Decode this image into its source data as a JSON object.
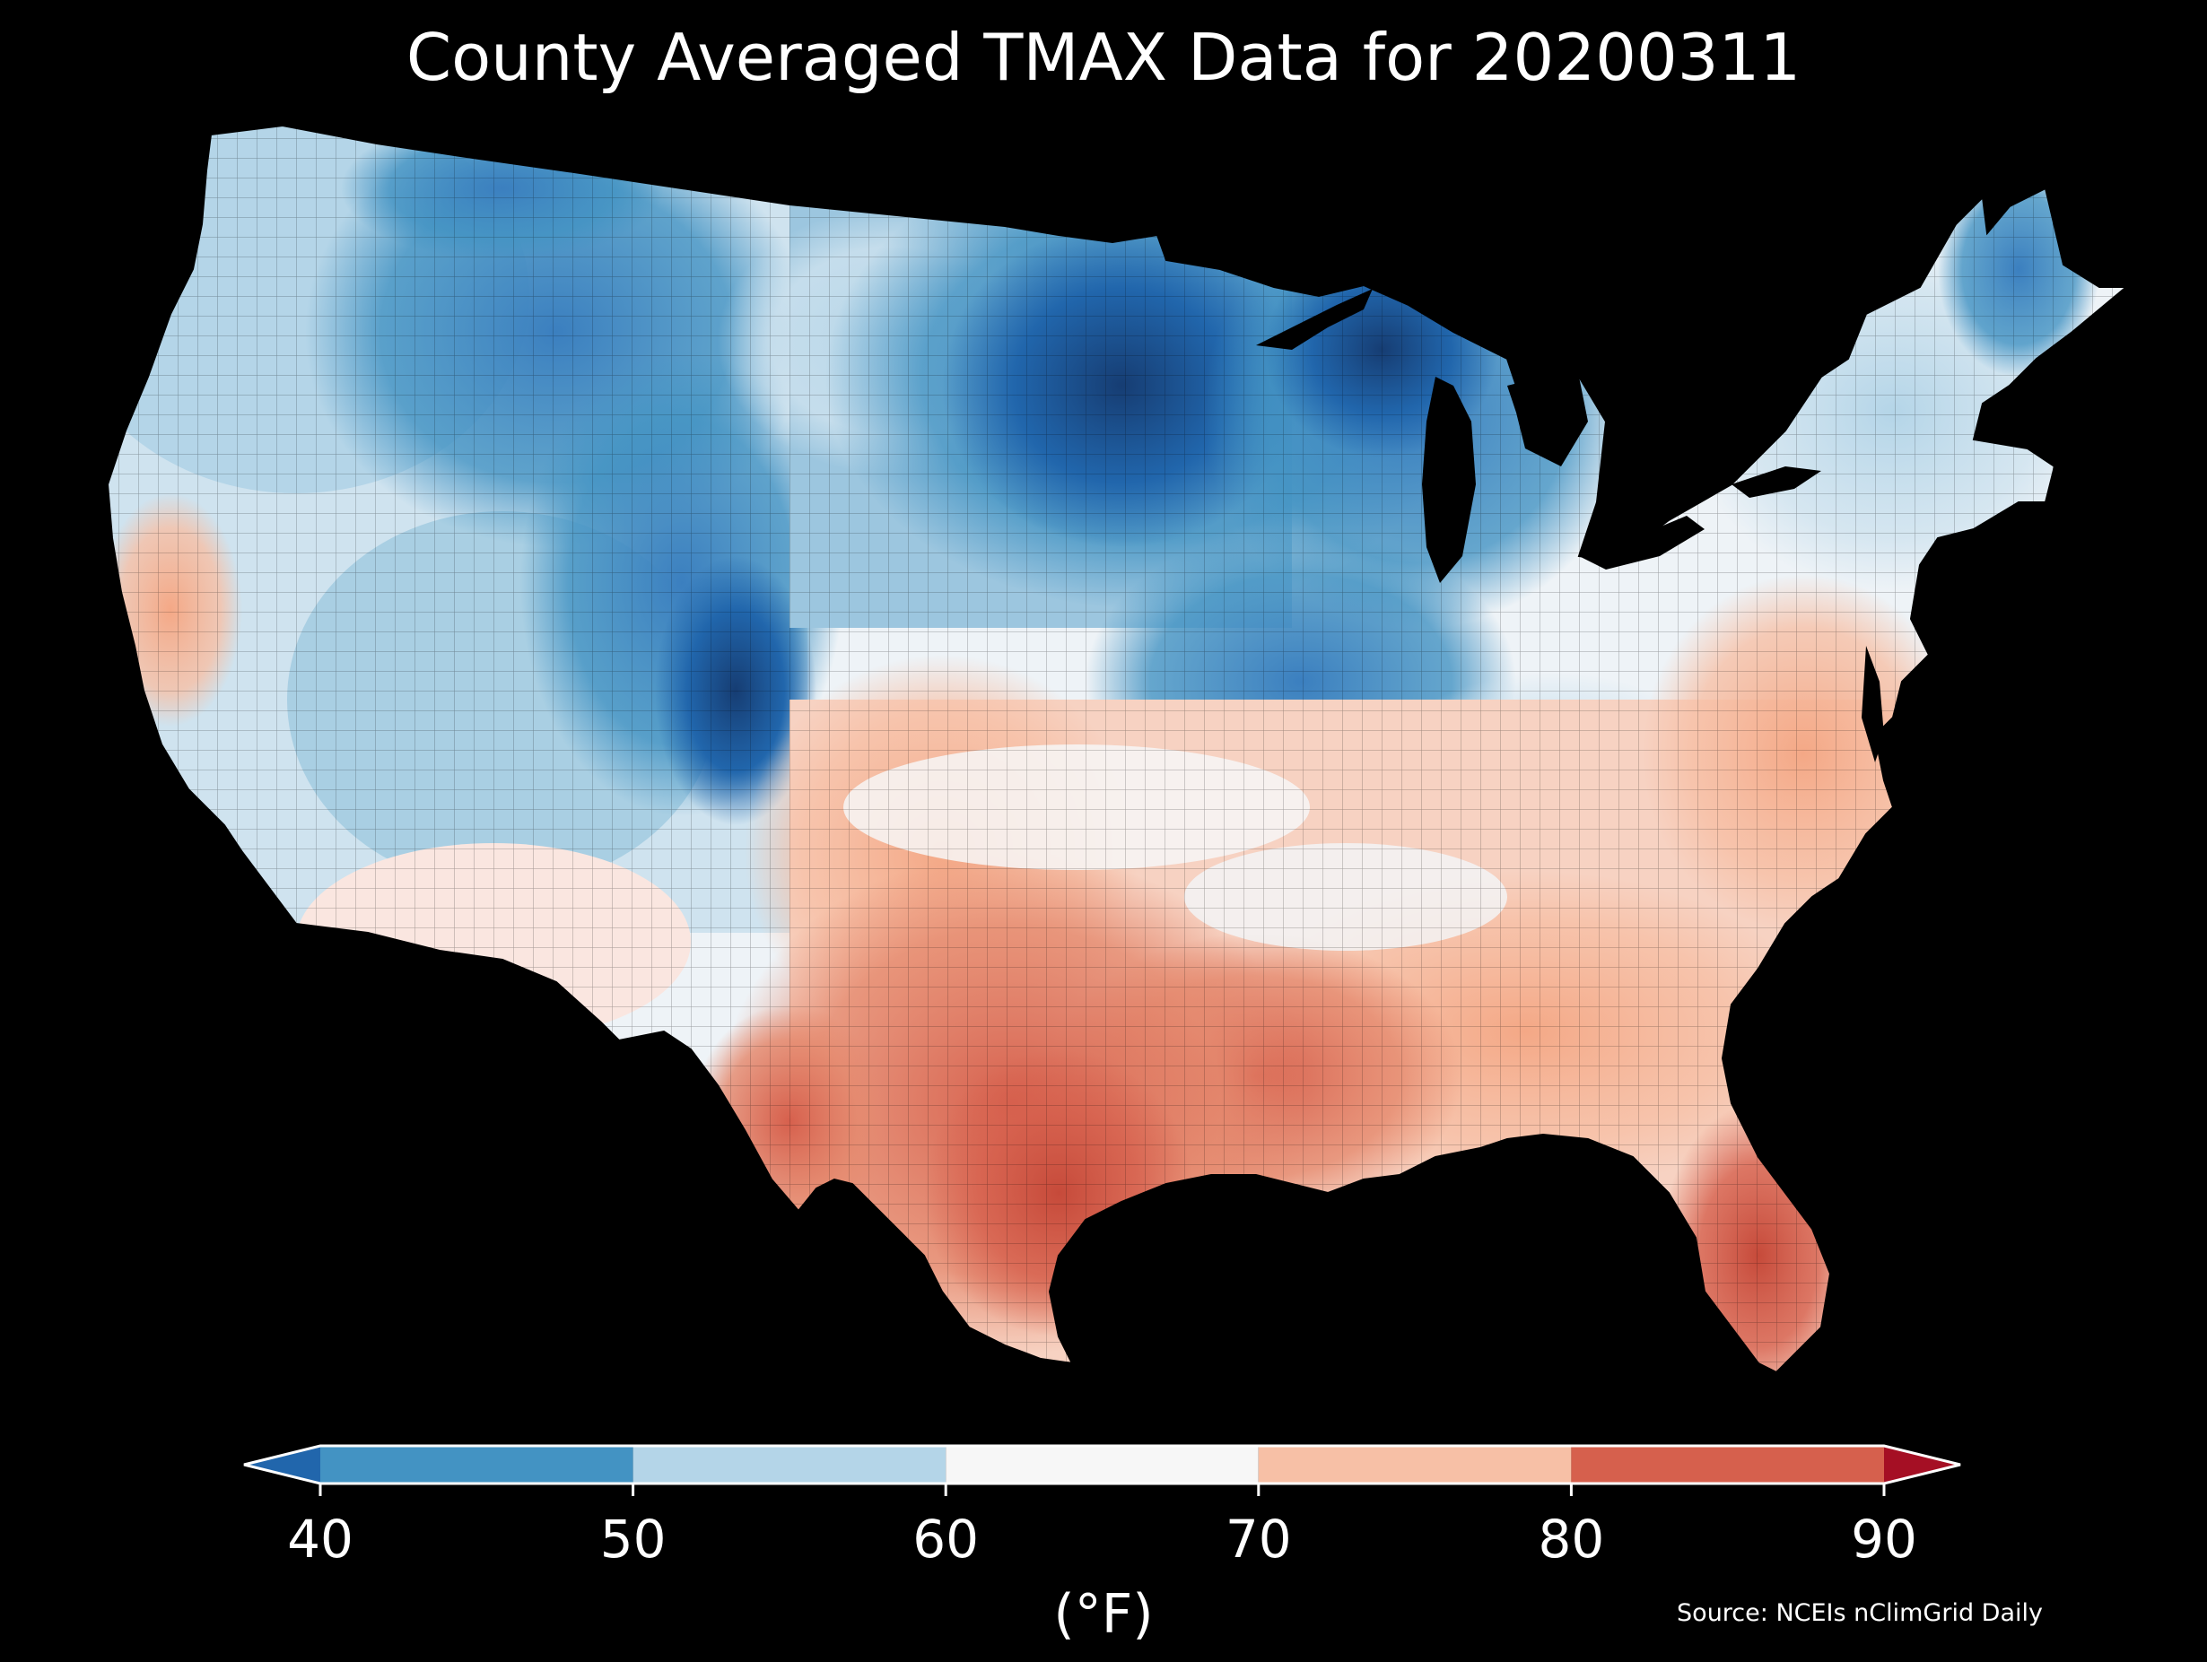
{
  "title": "County Averaged TMAX Data for 20200311",
  "colorbar": {
    "unit_label": "(°F)",
    "ticks": [
      "40",
      "50",
      "60",
      "70",
      "80",
      "90"
    ],
    "bins": [
      {
        "from": 40,
        "to": 50,
        "color": "#4393c3"
      },
      {
        "from": 50,
        "to": 60,
        "color": "#b4d5e8"
      },
      {
        "from": 60,
        "to": 70,
        "color": "#f7f7f7"
      },
      {
        "from": 70,
        "to": 80,
        "color": "#f7c0a6"
      },
      {
        "from": 80,
        "to": 90,
        "color": "#d6604d"
      }
    ],
    "under_color": "#2166ac",
    "over_color": "#a50f24"
  },
  "source": "Source: NCEIs nClimGrid Daily",
  "map": {
    "region": "contiguous-us",
    "variable": "TMAX",
    "regions": [
      {
        "name": "pacific-northwest",
        "level": "50-60"
      },
      {
        "name": "northern-rockies",
        "level": "40-50"
      },
      {
        "name": "upper-midwest",
        "level": "below-40"
      },
      {
        "name": "great-lakes",
        "level": "40-50"
      },
      {
        "name": "california-valley",
        "level": "70-80"
      },
      {
        "name": "southwest",
        "level": "60-70"
      },
      {
        "name": "great-basin",
        "level": "50-60"
      },
      {
        "name": "central-plains",
        "level": "60-70"
      },
      {
        "name": "ohio-valley",
        "level": "40-50"
      },
      {
        "name": "appalachians",
        "level": "50-60"
      },
      {
        "name": "northeast",
        "level": "50-60"
      },
      {
        "name": "mid-atlantic",
        "level": "70-80"
      },
      {
        "name": "southern-plains",
        "level": "70-80"
      },
      {
        "name": "texas",
        "level": "80-90"
      },
      {
        "name": "gulf-coast",
        "level": "70-80"
      },
      {
        "name": "southeast",
        "level": "70-80"
      },
      {
        "name": "florida",
        "level": "80-90"
      },
      {
        "name": "maine",
        "level": "40-50"
      }
    ]
  }
}
